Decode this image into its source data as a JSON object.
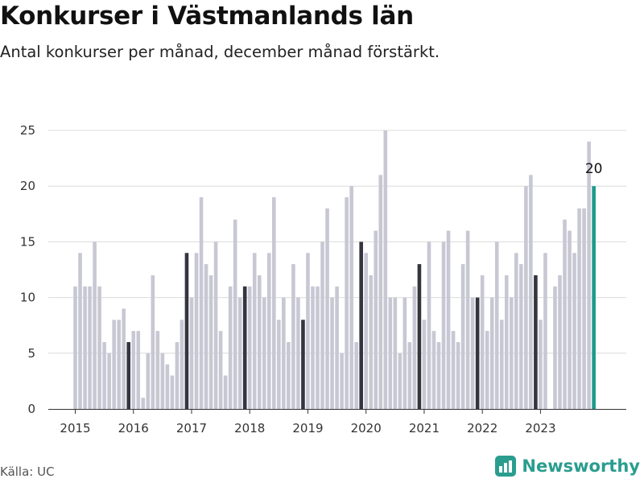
{
  "title": "Konkurser i Västmanlands län",
  "subtitle": "Antal konkurser per månad, december månad förstärkt.",
  "source": "Källa: UC",
  "brand": "Newsworthy",
  "colors": {
    "regular": "#c8c8d4",
    "december": "#35353f",
    "latest": "#1d9a8a",
    "grid": "#dcdcdc",
    "brand": "#2a9d8f"
  },
  "chart_data": {
    "type": "bar",
    "start": "2015-01",
    "ylim": [
      0,
      25
    ],
    "yticks": [
      0,
      5,
      10,
      15,
      20,
      25
    ],
    "xticks": [
      "2015",
      "2016",
      "2017",
      "2018",
      "2019",
      "2020",
      "2021",
      "2022",
      "2023"
    ],
    "highlight": "december",
    "values": [
      11,
      14,
      11,
      11,
      15,
      11,
      6,
      5,
      8,
      8,
      9,
      6,
      7,
      7,
      1,
      5,
      12,
      7,
      5,
      4,
      3,
      6,
      8,
      14,
      10,
      14,
      19,
      13,
      12,
      15,
      7,
      3,
      11,
      17,
      10,
      11,
      11,
      14,
      12,
      10,
      14,
      19,
      8,
      10,
      6,
      13,
      10,
      8,
      14,
      11,
      11,
      15,
      18,
      10,
      11,
      5,
      19,
      20,
      6,
      15,
      14,
      12,
      16,
      21,
      25,
      10,
      10,
      5,
      10,
      6,
      11,
      13,
      8,
      15,
      7,
      6,
      15,
      16,
      7,
      6,
      13,
      16,
      10,
      10,
      12,
      7,
      10,
      15,
      8,
      12,
      10,
      14,
      13,
      20,
      21,
      12,
      8,
      14,
      0,
      11,
      12,
      17,
      16,
      14,
      18,
      18,
      24,
      20
    ],
    "latest_label": "20"
  }
}
